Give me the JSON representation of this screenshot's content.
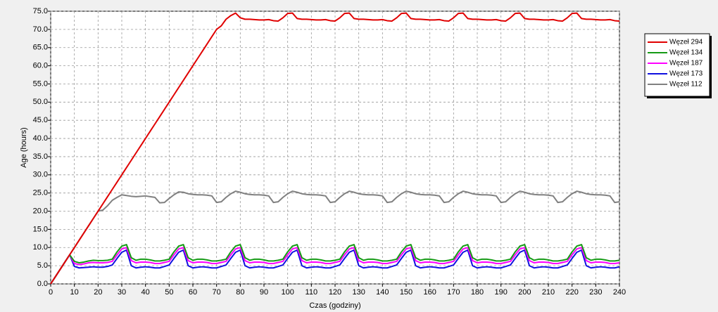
{
  "chart_data": {
    "type": "line",
    "xlabel": "Czas (godziny)",
    "ylabel": "Age (hours)",
    "xlim": [
      0,
      240
    ],
    "ylim": [
      0,
      75
    ],
    "xticks": [
      0,
      10,
      20,
      30,
      40,
      50,
      60,
      70,
      80,
      90,
      100,
      110,
      120,
      130,
      140,
      150,
      160,
      170,
      180,
      190,
      200,
      210,
      220,
      230,
      240
    ],
    "yticks": [
      {
        "value": 0,
        "label": "0.0"
      },
      {
        "value": 5,
        "label": "5.0"
      },
      {
        "value": 10,
        "label": "10.0"
      },
      {
        "value": 15,
        "label": "15.0"
      },
      {
        "value": 20,
        "label": "20.0"
      },
      {
        "value": 25,
        "label": "25.0"
      },
      {
        "value": 30,
        "label": "30.0"
      },
      {
        "value": 35,
        "label": "35.0"
      },
      {
        "value": 40,
        "label": "40.0"
      },
      {
        "value": 45,
        "label": "45.0"
      },
      {
        "value": 50,
        "label": "50.0"
      },
      {
        "value": 55,
        "label": "55.0"
      },
      {
        "value": 60,
        "label": "60.0"
      },
      {
        "value": 65,
        "label": "65.0"
      },
      {
        "value": 70,
        "label": "70.0"
      },
      {
        "value": 75,
        "label": "75.0"
      }
    ],
    "grid": true,
    "legend": "right",
    "x": [
      0,
      2,
      4,
      6,
      8,
      10,
      12,
      14,
      16,
      18,
      20,
      22,
      24,
      26,
      28,
      30,
      32,
      34,
      36,
      38,
      40,
      42,
      44,
      46,
      48,
      50,
      52,
      54,
      56,
      58,
      60,
      62,
      64,
      66,
      68,
      70,
      72,
      74,
      76,
      78,
      80,
      82,
      84,
      86,
      88,
      90,
      92,
      94,
      96,
      98,
      100,
      102,
      104,
      106,
      108,
      110,
      112,
      114,
      116,
      118,
      120,
      122,
      124,
      126,
      128,
      130,
      132,
      134,
      136,
      138,
      140,
      142,
      144,
      146,
      148,
      150,
      152,
      154,
      156,
      158,
      160,
      162,
      164,
      166,
      168,
      170,
      172,
      174,
      176,
      178,
      180,
      182,
      184,
      186,
      188,
      190,
      192,
      194,
      196,
      198,
      200,
      202,
      204,
      206,
      208,
      210,
      212,
      214,
      216,
      218,
      220,
      222,
      224,
      226,
      228,
      230,
      232,
      234,
      236,
      238,
      240
    ],
    "series": [
      {
        "name": "Węzeł 294",
        "color": "#e00000",
        "values": [
          0,
          2,
          4,
          6,
          8,
          10,
          12,
          14,
          16,
          18,
          20,
          22,
          24,
          26,
          28,
          30,
          32,
          34,
          36,
          38,
          40,
          42,
          44,
          46,
          48,
          50,
          52,
          54,
          56,
          58,
          60,
          62,
          64,
          66,
          68,
          70,
          71,
          72.8,
          73.8,
          74.5,
          73.2,
          72.8,
          72.8,
          72.7,
          72.6,
          72.6,
          72.7,
          72.4,
          72.3,
          73.2,
          74.4,
          74.5,
          73.0,
          72.8,
          72.8,
          72.7,
          72.6,
          72.6,
          72.7,
          72.4,
          72.3,
          73.2,
          74.4,
          74.5,
          73.0,
          72.8,
          72.8,
          72.7,
          72.6,
          72.6,
          72.7,
          72.4,
          72.3,
          73.2,
          74.4,
          74.5,
          73.0,
          72.8,
          72.8,
          72.7,
          72.6,
          72.6,
          72.7,
          72.4,
          72.3,
          73.2,
          74.4,
          74.5,
          73.0,
          72.8,
          72.8,
          72.7,
          72.6,
          72.6,
          72.7,
          72.4,
          72.3,
          73.2,
          74.4,
          74.5,
          73.0,
          72.8,
          72.8,
          72.7,
          72.6,
          72.6,
          72.7,
          72.4,
          72.3,
          73.2,
          74.4,
          74.5,
          73.0,
          72.8,
          72.8,
          72.7,
          72.6,
          72.6,
          72.7,
          72.4,
          72.3
        ]
      },
      {
        "name": "Węzeł 134",
        "color": "#159a15",
        "values": [
          0,
          2,
          4,
          6,
          8,
          6.2,
          5.8,
          6.0,
          6.3,
          6.5,
          6.4,
          6.4,
          6.5,
          6.8,
          8.8,
          10.4,
          10.8,
          7.2,
          6.5,
          6.8,
          6.8,
          6.6,
          6.3,
          6.3,
          6.5,
          6.8,
          8.8,
          10.4,
          10.8,
          7.2,
          6.5,
          6.8,
          6.8,
          6.6,
          6.3,
          6.3,
          6.5,
          6.8,
          8.8,
          10.4,
          10.8,
          7.2,
          6.5,
          6.8,
          6.8,
          6.6,
          6.3,
          6.3,
          6.5,
          6.8,
          8.8,
          10.4,
          10.8,
          7.2,
          6.5,
          6.8,
          6.8,
          6.6,
          6.3,
          6.3,
          6.5,
          6.8,
          8.8,
          10.4,
          10.8,
          7.2,
          6.5,
          6.8,
          6.8,
          6.6,
          6.3,
          6.3,
          6.5,
          6.8,
          8.8,
          10.4,
          10.8,
          7.2,
          6.5,
          6.8,
          6.8,
          6.6,
          6.3,
          6.3,
          6.5,
          6.8,
          8.8,
          10.4,
          10.8,
          7.2,
          6.5,
          6.8,
          6.8,
          6.6,
          6.3,
          6.3,
          6.5,
          6.8,
          8.8,
          10.4,
          10.8,
          7.2,
          6.5,
          6.8,
          6.8,
          6.6,
          6.3,
          6.3,
          6.5,
          6.8,
          8.8,
          10.4,
          10.8,
          7.2,
          6.5,
          6.8,
          6.8,
          6.6,
          6.3,
          6.3,
          6.5
        ]
      },
      {
        "name": "Węzeł 187",
        "color": "#ff00ff",
        "values": [
          0,
          2,
          4,
          6,
          8,
          5.6,
          5.3,
          5.5,
          5.8,
          5.9,
          5.8,
          5.8,
          5.9,
          6.2,
          8.0,
          9.6,
          10.0,
          6.4,
          5.8,
          6.0,
          6.0,
          5.9,
          5.6,
          5.6,
          5.9,
          6.2,
          8.0,
          9.6,
          10.0,
          6.4,
          5.8,
          6.0,
          6.0,
          5.9,
          5.6,
          5.6,
          5.9,
          6.2,
          8.0,
          9.6,
          10.0,
          6.4,
          5.8,
          6.0,
          6.0,
          5.9,
          5.6,
          5.6,
          5.9,
          6.2,
          8.0,
          9.6,
          10.0,
          6.4,
          5.8,
          6.0,
          6.0,
          5.9,
          5.6,
          5.6,
          5.9,
          6.2,
          8.0,
          9.6,
          10.0,
          6.4,
          5.8,
          6.0,
          6.0,
          5.9,
          5.6,
          5.6,
          5.9,
          6.2,
          8.0,
          9.6,
          10.0,
          6.4,
          5.8,
          6.0,
          6.0,
          5.9,
          5.6,
          5.6,
          5.9,
          6.2,
          8.0,
          9.6,
          10.0,
          6.4,
          5.8,
          6.0,
          6.0,
          5.9,
          5.6,
          5.6,
          5.9,
          6.2,
          8.0,
          9.6,
          10.0,
          6.4,
          5.8,
          6.0,
          6.0,
          5.9,
          5.6,
          5.6,
          5.9,
          6.2,
          8.0,
          9.6,
          10.0,
          6.4,
          5.8,
          6.0,
          6.0,
          5.9,
          5.6,
          5.6,
          5.8
        ]
      },
      {
        "name": "Węzeł 173",
        "color": "#1010e0",
        "values": [
          0,
          2,
          4,
          6,
          8,
          4.8,
          4.4,
          4.5,
          4.6,
          4.7,
          4.6,
          4.6,
          4.8,
          5.2,
          7.0,
          8.7,
          9.3,
          5.0,
          4.4,
          4.6,
          4.7,
          4.6,
          4.4,
          4.4,
          4.8,
          5.2,
          7.0,
          8.7,
          9.3,
          5.0,
          4.4,
          4.6,
          4.7,
          4.6,
          4.4,
          4.4,
          4.8,
          5.2,
          7.0,
          8.7,
          9.3,
          5.0,
          4.4,
          4.6,
          4.7,
          4.6,
          4.4,
          4.4,
          4.8,
          5.2,
          7.0,
          8.7,
          9.3,
          5.0,
          4.4,
          4.6,
          4.7,
          4.6,
          4.4,
          4.4,
          4.8,
          5.2,
          7.0,
          8.7,
          9.3,
          5.0,
          4.4,
          4.6,
          4.7,
          4.6,
          4.4,
          4.4,
          4.8,
          5.2,
          7.0,
          8.7,
          9.3,
          5.0,
          4.4,
          4.6,
          4.7,
          4.6,
          4.4,
          4.4,
          4.8,
          5.2,
          7.0,
          8.7,
          9.3,
          5.0,
          4.4,
          4.6,
          4.7,
          4.6,
          4.4,
          4.4,
          4.8,
          5.2,
          7.0,
          8.7,
          9.3,
          5.0,
          4.4,
          4.6,
          4.7,
          4.6,
          4.4,
          4.4,
          4.8,
          5.2,
          7.0,
          8.7,
          9.3,
          5.0,
          4.4,
          4.6,
          4.7,
          4.6,
          4.4,
          4.4,
          4.7
        ]
      },
      {
        "name": "Węzeł 112",
        "color": "#808080",
        "values": [
          0,
          2,
          4,
          6,
          8,
          10,
          12,
          14,
          16,
          18,
          20,
          20.3,
          21.5,
          23,
          23.8,
          24.5,
          24.3,
          24.1,
          24.0,
          24.1,
          24.2,
          24.0,
          23.8,
          22.3,
          22.4,
          23.5,
          24.5,
          25.3,
          25.2,
          24.8,
          24.6,
          24.5,
          24.5,
          24.4,
          24.2,
          22.4,
          22.6,
          23.8,
          24.8,
          25.5,
          25.2,
          24.8,
          24.6,
          24.5,
          24.5,
          24.4,
          24.2,
          22.4,
          22.6,
          23.8,
          24.8,
          25.5,
          25.2,
          24.8,
          24.6,
          24.5,
          24.5,
          24.4,
          24.2,
          22.4,
          22.6,
          23.8,
          24.8,
          25.5,
          25.2,
          24.8,
          24.6,
          24.5,
          24.5,
          24.4,
          24.2,
          22.4,
          22.6,
          23.8,
          24.8,
          25.5,
          25.2,
          24.8,
          24.6,
          24.5,
          24.5,
          24.4,
          24.2,
          22.4,
          22.6,
          23.8,
          24.8,
          25.5,
          25.2,
          24.8,
          24.6,
          24.5,
          24.5,
          24.4,
          24.2,
          22.4,
          22.6,
          23.8,
          24.8,
          25.5,
          25.2,
          24.8,
          24.6,
          24.5,
          24.5,
          24.4,
          24.2,
          22.4,
          22.6,
          23.8,
          24.8,
          25.5,
          25.2,
          24.8,
          24.6,
          24.5,
          24.5,
          24.4,
          24.2,
          22.4,
          22.6
        ]
      }
    ]
  }
}
